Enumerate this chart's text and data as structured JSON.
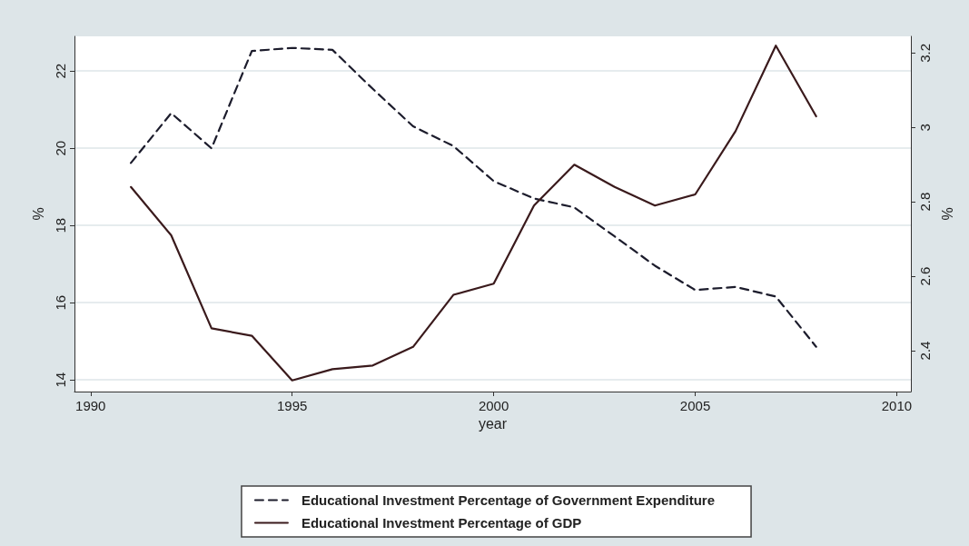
{
  "chart_data": {
    "type": "line",
    "xlabel": "year",
    "ylabel": "%",
    "y2label": "%",
    "x": [
      1991,
      1992,
      1993,
      1994,
      1995,
      1996,
      1997,
      1998,
      1999,
      2000,
      2001,
      2002,
      2003,
      2004,
      2005,
      2006,
      2007,
      2008
    ],
    "xlim": [
      1989.6,
      2010.35
    ],
    "xticks": [
      1990,
      1995,
      2000,
      2005,
      2010
    ],
    "ylim": [
      13.7,
      22.9
    ],
    "yticks": [
      14,
      16,
      18,
      20,
      22
    ],
    "y2lim": [
      2.29,
      3.245
    ],
    "y2ticks": [
      2.4,
      2.6,
      2.8,
      3,
      3.2
    ],
    "grid": "y",
    "legend": "bottom",
    "marker": "none",
    "series": [
      {
        "name": "Educational Investment Percentage of Government Expenditure",
        "color": "#1c1c2c",
        "line_style": "dashed",
        "values": [
          19.62,
          20.91,
          20.0,
          22.52,
          22.6,
          22.55,
          21.54,
          20.57,
          20.06,
          19.15,
          18.7,
          18.47,
          17.72,
          16.96,
          16.33,
          16.41,
          16.16,
          14.86
        ]
      },
      {
        "name": "Educational Investment Percentage of GDP",
        "color": "#3a1a1c",
        "line_style": "solid",
        "axis": "y2",
        "values": [
          2.84,
          2.71,
          2.46,
          2.44,
          2.32,
          2.35,
          2.36,
          2.41,
          2.55,
          2.58,
          2.79,
          2.9,
          2.84,
          2.79,
          2.82,
          2.99,
          3.22,
          3.03
        ]
      }
    ]
  }
}
